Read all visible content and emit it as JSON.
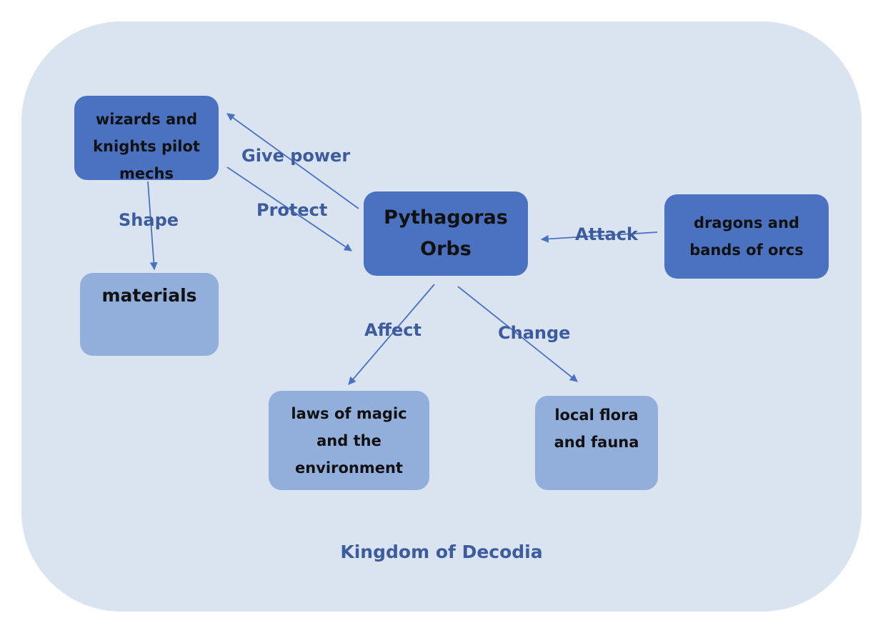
{
  "region": {
    "title": "Kingdom of Decodia"
  },
  "nodes": {
    "wizards": {
      "lines": [
        "wizards and",
        "knights pilot",
        "mechs"
      ]
    },
    "orbs": {
      "lines": [
        "Pythagoras",
        "Orbs"
      ]
    },
    "dragons": {
      "lines": [
        "dragons and",
        "bands of orcs"
      ]
    },
    "materials": {
      "lines": [
        "materials"
      ]
    },
    "magic": {
      "lines": [
        "laws of magic",
        "and the",
        "environment"
      ]
    },
    "flora": {
      "lines": [
        "local flora",
        "and fauna"
      ]
    }
  },
  "edges": {
    "give_power": {
      "label": "Give power",
      "from": "orbs",
      "to": "wizards"
    },
    "protect": {
      "label": "Protect",
      "from": "wizards",
      "to": "orbs"
    },
    "shape": {
      "label": "Shape",
      "from": "wizards",
      "to": "materials"
    },
    "attack": {
      "label": "Attack",
      "from": "dragons",
      "to": "orbs"
    },
    "affect": {
      "label": "Affect",
      "from": "orbs",
      "to": "magic"
    },
    "change": {
      "label": "Change",
      "from": "orbs",
      "to": "flora"
    }
  },
  "colors": {
    "region_fill": "#dae3f0",
    "primary_node": "#4a72c1",
    "secondary_node": "#92aedb",
    "label_text": "#3d5c9e",
    "arrow": "#4a72c1"
  }
}
